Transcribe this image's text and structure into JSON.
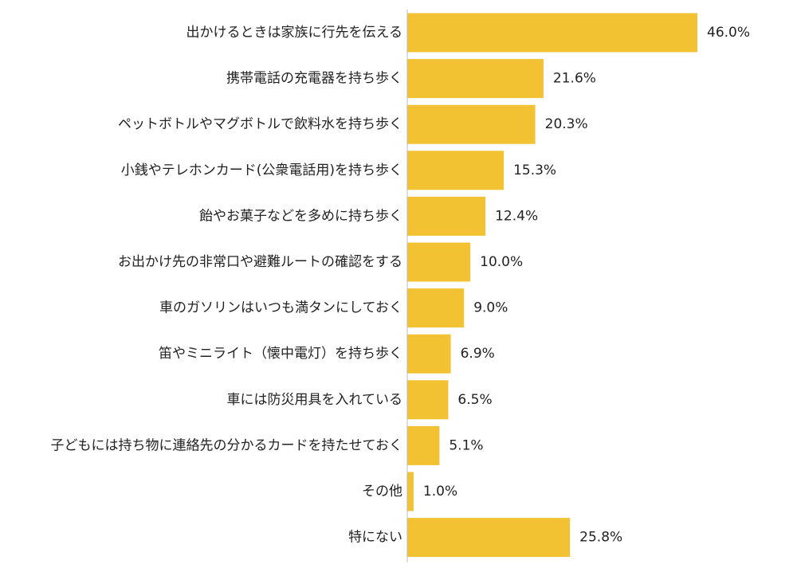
{
  "chart_data": {
    "type": "bar",
    "orientation": "horizontal",
    "categories": [
      "出かけるときは家族に行先を伝える",
      "携帯電話の充電器を持ち歩く",
      "ペットボトルやマグボトルで飲料水を持ち歩く",
      "小銭やテレホンカード(公衆電話用)を持ち歩く",
      "飴やお菓子などを多めに持ち歩く",
      "お出かけ先の非常口や避難ルートの確認をする",
      "車のガソリンはいつも満タンにしておく",
      "笛やミニライト（懐中電灯）を持ち歩く",
      "車には防災用具を入れている",
      "子どもには持ち物に連絡先の分かるカードを持たせておく",
      "その他",
      "特にない"
    ],
    "values": [
      46.0,
      21.6,
      20.3,
      15.3,
      12.4,
      10.0,
      9.0,
      6.9,
      6.5,
      5.1,
      1.0,
      25.8
    ],
    "value_labels": [
      "46.0%",
      "21.6%",
      "20.3%",
      "15.3%",
      "12.4%",
      "10.0%",
      "9.0%",
      "6.9%",
      "6.5%",
      "5.1%",
      "1.0%",
      "25.8%"
    ],
    "xlim": [
      0,
      50
    ],
    "bar_color": "#F3C232",
    "axis_color": "#BBBBBB",
    "grid": false,
    "legend": "none"
  }
}
